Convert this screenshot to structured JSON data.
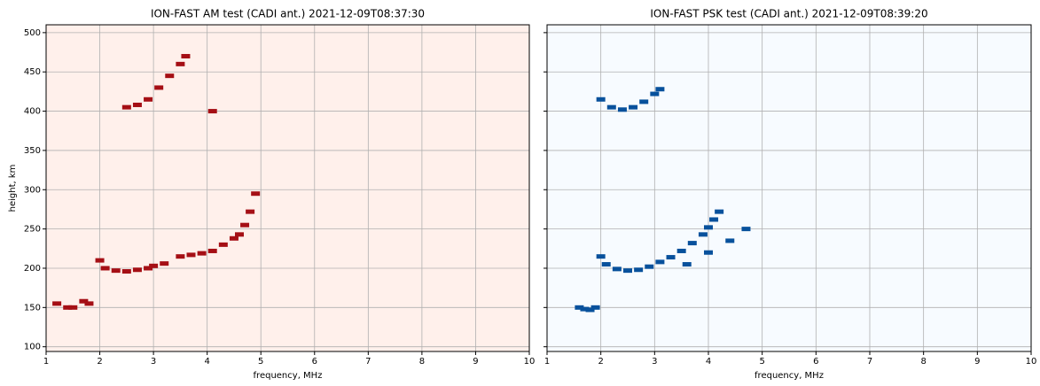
{
  "chart_data": [
    {
      "type": "scatter",
      "title": "ION-FAST AM test (CADI ant.) 2021-12-09T08:37:30",
      "xlabel": "frequency, MHz",
      "ylabel": "height, km",
      "background": "#fff0eb",
      "color": "#a50f15",
      "x": [
        1.2,
        1.4,
        1.5,
        1.7,
        1.8,
        2.0,
        2.1,
        2.3,
        2.5,
        2.7,
        2.9,
        3.0,
        3.2,
        3.5,
        3.7,
        3.9,
        4.1,
        4.3,
        4.5,
        4.6,
        4.7,
        4.8,
        4.9,
        2.5,
        2.7,
        2.9,
        3.1,
        3.3,
        3.5,
        3.6,
        4.1
      ],
      "y": [
        155,
        150,
        150,
        158,
        155,
        210,
        200,
        197,
        196,
        198,
        200,
        203,
        206,
        215,
        217,
        219,
        222,
        230,
        238,
        243,
        255,
        272,
        295,
        405,
        408,
        415,
        430,
        445,
        460,
        470,
        400
      ],
      "xlim": [
        1,
        10
      ],
      "ylim": [
        94,
        510
      ],
      "xticks": [
        1,
        2,
        3,
        4,
        5,
        6,
        7,
        8,
        9,
        10
      ],
      "yticks": [
        100,
        150,
        200,
        250,
        300,
        350,
        400,
        450,
        500
      ],
      "grid": true
    },
    {
      "type": "scatter",
      "title": "ION-FAST PSK test (CADI ant.) 2021-12-09T08:39:20",
      "xlabel": "frequency, MHz",
      "background": "#f7fbff",
      "color": "#08519c",
      "x": [
        1.6,
        1.7,
        1.8,
        1.9,
        2.0,
        2.1,
        2.3,
        2.5,
        2.7,
        2.9,
        3.1,
        3.3,
        3.5,
        3.7,
        3.9,
        4.0,
        4.1,
        4.2,
        2.0,
        2.2,
        2.4,
        2.6,
        2.8,
        3.0,
        3.1,
        3.6,
        4.0,
        4.4,
        4.7
      ],
      "y": [
        150,
        148,
        147,
        150,
        215,
        205,
        199,
        197,
        198,
        202,
        208,
        214,
        222,
        232,
        243,
        252,
        262,
        272,
        415,
        405,
        402,
        405,
        412,
        422,
        428,
        205,
        220,
        235,
        250
      ],
      "xlim": [
        1,
        10
      ],
      "ylim": [
        94,
        510
      ],
      "xticks": [
        1,
        2,
        3,
        4,
        5,
        6,
        7,
        8,
        9,
        10
      ],
      "yticks": [
        100,
        150,
        200,
        250,
        300,
        350,
        400,
        450,
        500
      ],
      "grid": true
    }
  ]
}
